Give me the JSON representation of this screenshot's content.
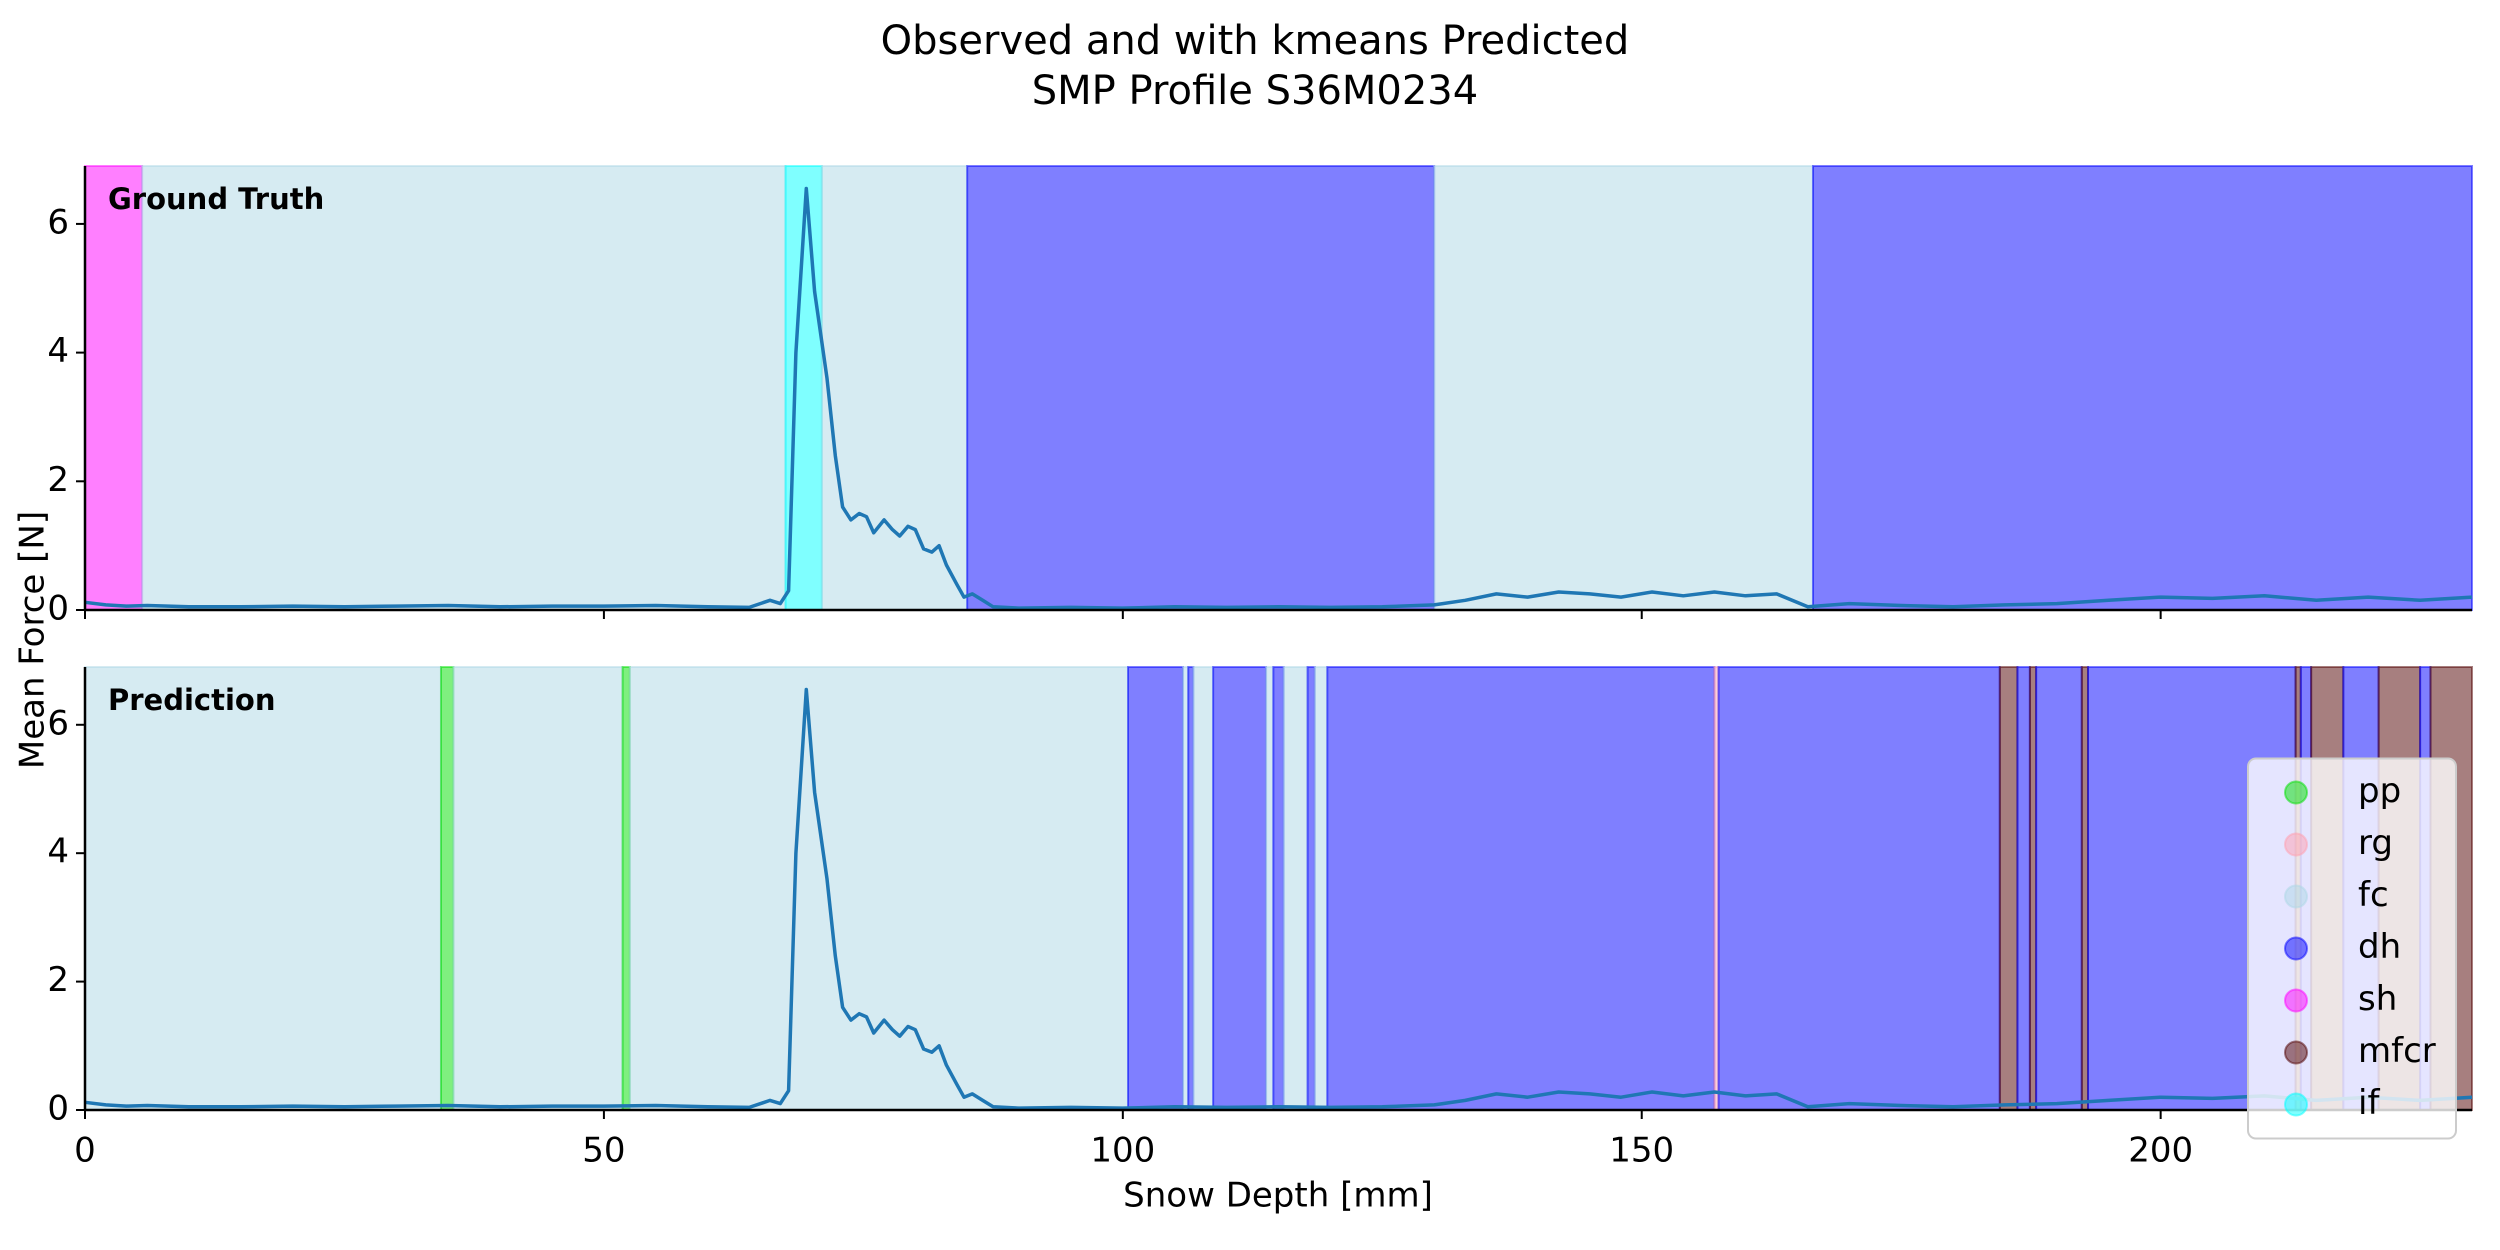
{
  "chart_data": [
    {
      "type": "line",
      "title": "Observed and with kmeans Predicted",
      "subtitle": "SMP Profile S36M0234",
      "ylabel": "Mean Force [N]",
      "panel_label": "Ground Truth",
      "xlim": [
        0,
        230
      ],
      "xticks": [
        0,
        50,
        100,
        150,
        200
      ],
      "ylim": [
        0,
        6.9
      ],
      "yticks": [
        0,
        2,
        4,
        6
      ],
      "color": "#1f77b4",
      "band_alpha": 0.5,
      "x": [
        0,
        2,
        4,
        6,
        10,
        15,
        20,
        25,
        30,
        35,
        40,
        45,
        50,
        55,
        60,
        64,
        66,
        67,
        67.8,
        68.5,
        69.5,
        70.3,
        71.5,
        72.3,
        73,
        73.8,
        74.6,
        75.3,
        76,
        77,
        77.8,
        78.5,
        79.3,
        80,
        80.8,
        81.6,
        82.3,
        83,
        84,
        84.7,
        85.5,
        86.5,
        87.5,
        90,
        95,
        100,
        105,
        110,
        115,
        120,
        125,
        130,
        133,
        136,
        139,
        142,
        145,
        148,
        151,
        154,
        157,
        160,
        163,
        166,
        170,
        175,
        180,
        185,
        190,
        195,
        200,
        205,
        210,
        215,
        220,
        225,
        230
      ],
      "values": [
        0.12,
        0.08,
        0.06,
        0.07,
        0.05,
        0.05,
        0.06,
        0.05,
        0.06,
        0.07,
        0.05,
        0.06,
        0.06,
        0.07,
        0.05,
        0.04,
        0.15,
        0.1,
        0.3,
        4.0,
        6.55,
        4.95,
        3.6,
        2.4,
        1.6,
        1.4,
        1.5,
        1.45,
        1.2,
        1.4,
        1.25,
        1.15,
        1.3,
        1.25,
        0.95,
        0.9,
        1.0,
        0.7,
        0.4,
        0.2,
        0.25,
        0.15,
        0.05,
        0.03,
        0.04,
        0.03,
        0.05,
        0.04,
        0.05,
        0.04,
        0.05,
        0.08,
        0.15,
        0.25,
        0.2,
        0.28,
        0.25,
        0.2,
        0.28,
        0.22,
        0.28,
        0.22,
        0.25,
        0.05,
        0.1,
        0.07,
        0.05,
        0.08,
        0.1,
        0.15,
        0.2,
        0.18,
        0.22,
        0.15,
        0.2,
        0.15,
        0.2
      ],
      "bands": [
        {
          "class": "sh",
          "start": 0,
          "end": 5.5
        },
        {
          "class": "fc",
          "start": 5.5,
          "end": 67.5
        },
        {
          "class": "if",
          "start": 67.5,
          "end": 71
        },
        {
          "class": "fc",
          "start": 71,
          "end": 85
        },
        {
          "class": "dh",
          "start": 85,
          "end": 130
        },
        {
          "class": "fc",
          "start": 130,
          "end": 166.5
        },
        {
          "class": "dh",
          "start": 166.5,
          "end": 230
        }
      ]
    },
    {
      "type": "line",
      "panel_label": "Prediction",
      "xlabel": "Snow Depth [mm]",
      "xlim": [
        0,
        230
      ],
      "xticks": [
        0,
        50,
        100,
        150,
        200
      ],
      "ylim": [
        0,
        6.9
      ],
      "yticks": [
        0,
        2,
        4,
        6
      ],
      "color": "#1f77b4",
      "band_alpha": 0.5,
      "x": [
        0,
        2,
        4,
        6,
        10,
        15,
        20,
        25,
        30,
        35,
        40,
        45,
        50,
        55,
        60,
        64,
        66,
        67,
        67.8,
        68.5,
        69.5,
        70.3,
        71.5,
        72.3,
        73,
        73.8,
        74.6,
        75.3,
        76,
        77,
        77.8,
        78.5,
        79.3,
        80,
        80.8,
        81.6,
        82.3,
        83,
        84,
        84.7,
        85.5,
        86.5,
        87.5,
        90,
        95,
        100,
        105,
        110,
        115,
        120,
        125,
        130,
        133,
        136,
        139,
        142,
        145,
        148,
        151,
        154,
        157,
        160,
        163,
        166,
        170,
        175,
        180,
        185,
        190,
        195,
        200,
        205,
        210,
        215,
        220,
        225,
        230
      ],
      "values": [
        0.12,
        0.08,
        0.06,
        0.07,
        0.05,
        0.05,
        0.06,
        0.05,
        0.06,
        0.07,
        0.05,
        0.06,
        0.06,
        0.07,
        0.05,
        0.04,
        0.15,
        0.1,
        0.3,
        4.0,
        6.55,
        4.95,
        3.6,
        2.4,
        1.6,
        1.4,
        1.5,
        1.45,
        1.2,
        1.4,
        1.25,
        1.15,
        1.3,
        1.25,
        0.95,
        0.9,
        1.0,
        0.7,
        0.4,
        0.2,
        0.25,
        0.15,
        0.05,
        0.03,
        0.04,
        0.03,
        0.05,
        0.04,
        0.05,
        0.04,
        0.05,
        0.08,
        0.15,
        0.25,
        0.2,
        0.28,
        0.25,
        0.2,
        0.28,
        0.22,
        0.28,
        0.22,
        0.25,
        0.05,
        0.1,
        0.07,
        0.05,
        0.08,
        0.1,
        0.15,
        0.2,
        0.18,
        0.22,
        0.15,
        0.2,
        0.15,
        0.2
      ],
      "bands": [
        {
          "class": "fc",
          "start": 0,
          "end": 34.3
        },
        {
          "class": "pp",
          "start": 34.3,
          "end": 35.5
        },
        {
          "class": "fc",
          "start": 35.5,
          "end": 51.8
        },
        {
          "class": "pp",
          "start": 51.8,
          "end": 52.5
        },
        {
          "class": "fc",
          "start": 52.5,
          "end": 100.5
        },
        {
          "class": "dh",
          "start": 100.5,
          "end": 105.8
        },
        {
          "class": "fc",
          "start": 105.8,
          "end": 106.3
        },
        {
          "class": "dh",
          "start": 106.3,
          "end": 106.8
        },
        {
          "class": "fc",
          "start": 106.8,
          "end": 108.7
        },
        {
          "class": "dh",
          "start": 108.7,
          "end": 113.8
        },
        {
          "class": "fc",
          "start": 113.8,
          "end": 114.5
        },
        {
          "class": "dh",
          "start": 114.5,
          "end": 115.5
        },
        {
          "class": "fc",
          "start": 115.5,
          "end": 117.8
        },
        {
          "class": "dh",
          "start": 117.8,
          "end": 118.5
        },
        {
          "class": "fc",
          "start": 118.5,
          "end": 119.7
        },
        {
          "class": "dh",
          "start": 119.7,
          "end": 157
        },
        {
          "class": "rg",
          "start": 157,
          "end": 157.4
        },
        {
          "class": "dh",
          "start": 157.4,
          "end": 184.5
        },
        {
          "class": "mfcr",
          "start": 184.5,
          "end": 186.2
        },
        {
          "class": "dh",
          "start": 186.2,
          "end": 187.4
        },
        {
          "class": "mfcr",
          "start": 187.4,
          "end": 188
        },
        {
          "class": "dh",
          "start": 188,
          "end": 192.4
        },
        {
          "class": "mfcr",
          "start": 192.4,
          "end": 193
        },
        {
          "class": "dh",
          "start": 193,
          "end": 213
        },
        {
          "class": "mfcr",
          "start": 213,
          "end": 213.5
        },
        {
          "class": "dh",
          "start": 213.5,
          "end": 214.5
        },
        {
          "class": "mfcr",
          "start": 214.5,
          "end": 217.6
        },
        {
          "class": "dh",
          "start": 217.6,
          "end": 221
        },
        {
          "class": "mfcr",
          "start": 221,
          "end": 225
        },
        {
          "class": "dh",
          "start": 225,
          "end": 226
        },
        {
          "class": "mfcr",
          "start": 226,
          "end": 230
        }
      ],
      "legend": {
        "loc": "right",
        "entries": [
          {
            "name": "pp",
            "color": "#00e000"
          },
          {
            "name": "rg",
            "color": "#ffa0b0"
          },
          {
            "name": "fc",
            "color": "#add8e6"
          },
          {
            "name": "dh",
            "color": "#0000ff"
          },
          {
            "name": "sh",
            "color": "#ff00ff"
          },
          {
            "name": "mfcr",
            "color": "#500000"
          },
          {
            "name": "if",
            "color": "#00ffff"
          }
        ]
      }
    }
  ]
}
